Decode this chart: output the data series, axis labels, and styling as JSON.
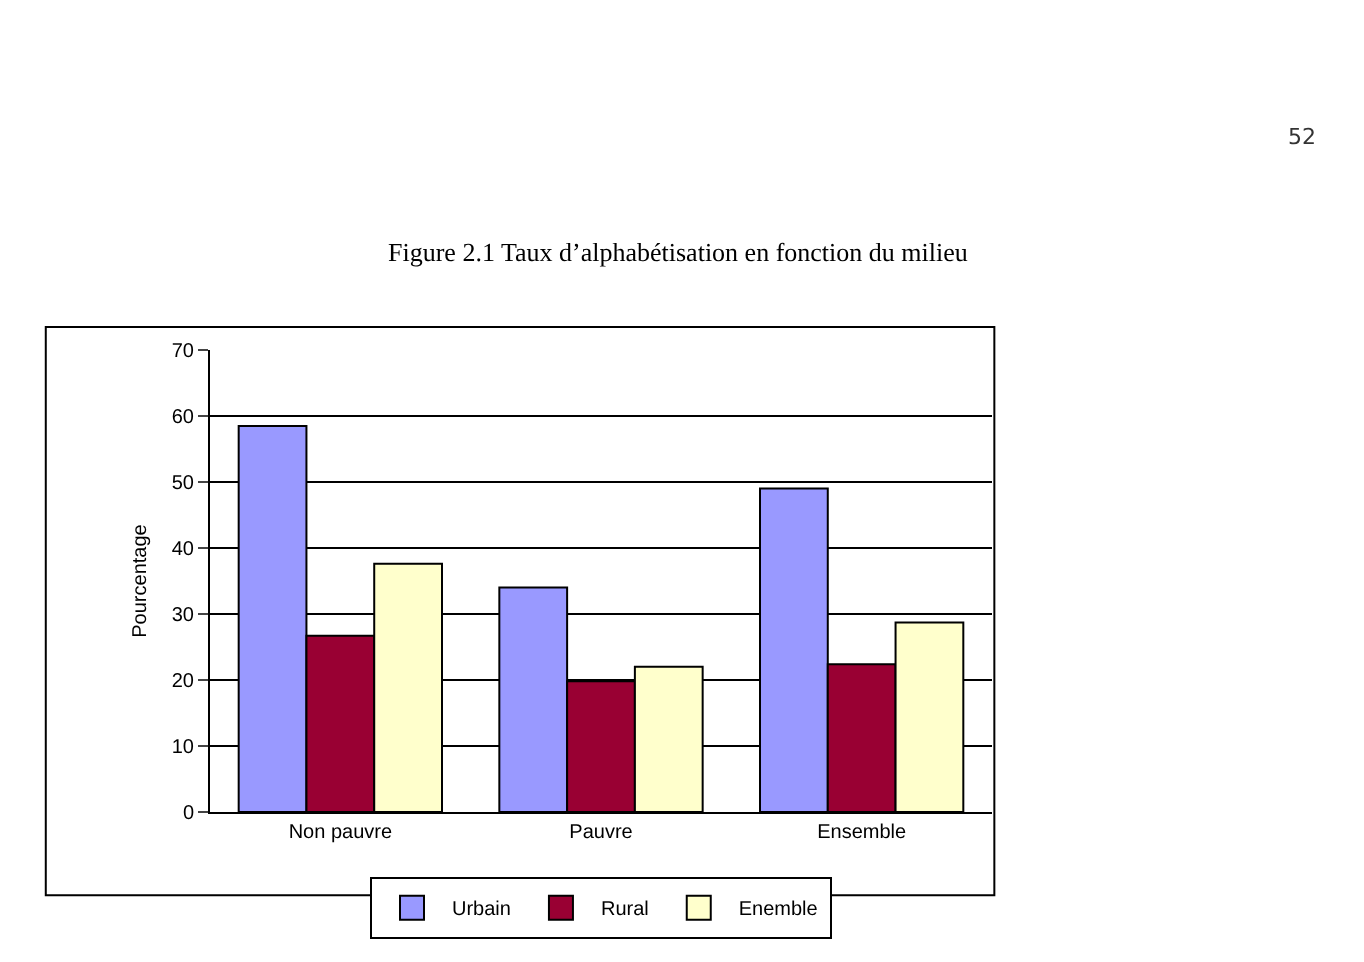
{
  "chart_data": {
    "type": "bar",
    "title": "Figure 2.1 Taux d’alphabétisation en fonction du milieu",
    "ylabel": "Pourcentage",
    "annotations": [
      "52"
    ],
    "categories": [
      "Non pauvre",
      "Pauvre",
      "Ensemble"
    ],
    "series": [
      {
        "name": "Urbain",
        "color": "#9999ff",
        "values": [
          58.5,
          34,
          49
        ]
      },
      {
        "name": "Rural",
        "color": "#990033",
        "values": [
          26.7,
          19.8,
          22.4
        ]
      },
      {
        "name": "Enemble",
        "color": "#ffffcc",
        "values": [
          37.6,
          22,
          28.7
        ]
      }
    ],
    "ylim": [
      0,
      70
    ],
    "yticks": [
      0,
      10,
      20,
      30,
      40,
      50,
      60,
      70
    ],
    "grid": "y",
    "legend": "bottom"
  }
}
